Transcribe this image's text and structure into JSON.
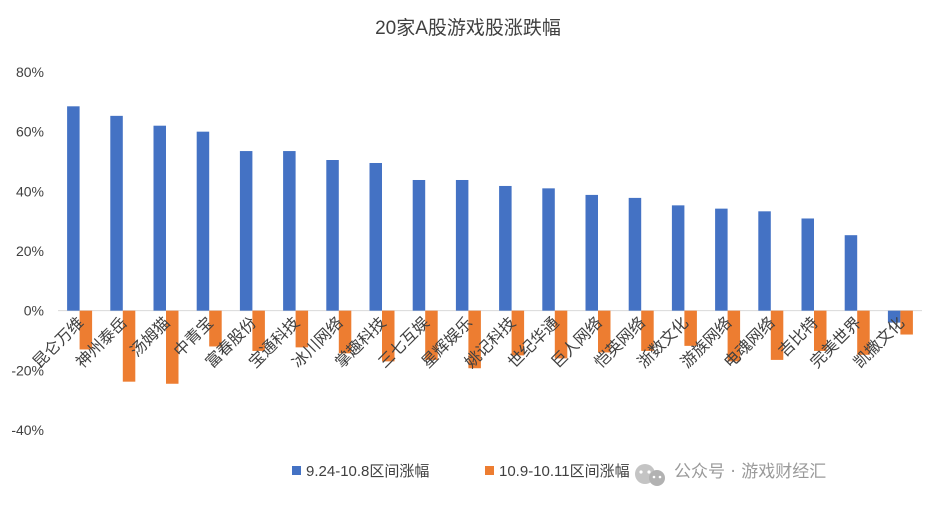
{
  "chart_data": {
    "type": "bar",
    "title": "20家A股游戏股涨跌幅",
    "categories": [
      "昆仑万维",
      "神州泰岳",
      "汤姆猫",
      "中青宝",
      "富春股份",
      "宝通科技",
      "冰川网络",
      "掌趣科技",
      "三七互娱",
      "星辉娱乐",
      "姚记科技",
      "世纪华通",
      "巨人网络",
      "恺英网络",
      "浙数文化",
      "游族网络",
      "电魂网络",
      "吉比特",
      "完美世界",
      "凯撒文化"
    ],
    "series": [
      {
        "name": "9.24-10.8区间涨幅",
        "color": "#4472C4",
        "values": [
          68.5,
          65.3,
          62.0,
          60.0,
          53.5,
          53.5,
          50.5,
          49.5,
          43.8,
          43.8,
          41.8,
          41.0,
          38.8,
          37.8,
          35.3,
          34.2,
          33.3,
          30.9,
          25.3,
          -4.0
        ]
      },
      {
        "name": "10.9-10.11区间涨幅",
        "color": "#ED7D31",
        "values": [
          -13.0,
          -23.8,
          -24.5,
          -12.0,
          -13.5,
          -12.3,
          -14.3,
          -17.0,
          -16.5,
          -19.3,
          -15.0,
          -16.0,
          -14.0,
          -13.5,
          -11.8,
          -17.0,
          -16.5,
          -13.5,
          -14.8,
          -8.0
        ]
      }
    ],
    "ylim": [
      -40,
      80
    ],
    "yticks": [
      "80%",
      "60%",
      "40%",
      "20%",
      "0%",
      "-20%",
      "-40%"
    ],
    "ytick_values": [
      80,
      60,
      40,
      20,
      0,
      -20,
      -40
    ],
    "grid": false,
    "legend_position": "bottom"
  },
  "watermark": {
    "icon": "wechat-icon",
    "text": "公众号 · 游戏财经汇"
  }
}
